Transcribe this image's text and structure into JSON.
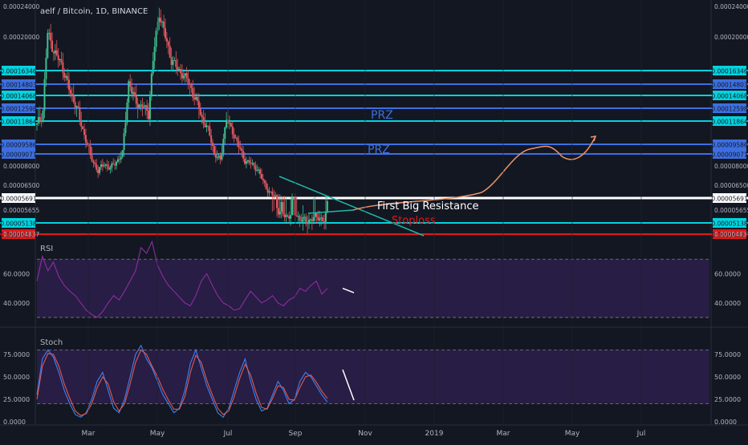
{
  "colors": {
    "background": "#131722",
    "up_candle": "#3fbf8f",
    "down_candle": "#e4585f",
    "cyan_level": "#00d4e0",
    "blue_level": "#3d6fe0",
    "white_level": "#ffffff",
    "red_level": "#e01919",
    "rsi_line": "#8e2ca3",
    "stoch_k": "#3b82f6",
    "stoch_d": "#e05a4f",
    "projection": "#e8936b",
    "trendline": "#1fb8a8",
    "band_fill": "#3a2260",
    "price_label_text": "#b2b5be"
  },
  "header": {
    "title": "aelf / Bitcoin, 1D, BINANCE"
  },
  "chart_data": [
    {
      "type": "candlestick",
      "title": "aelf / Bitcoin, 1D, BINANCE",
      "ylim": [
        4e-05,
        0.00024
      ],
      "y_ticks": [
        "0.00024000",
        "0.00020000",
        "0.00008000",
        "0.00006500",
        "0.00005655",
        "0.00004837"
      ],
      "x_ticks": [
        "Mar",
        "May",
        "Jul",
        "Sep",
        "Nov",
        "2019",
        "Mar",
        "May",
        "Jul"
      ],
      "price_series": [
        [
          0,
          0.000115
        ],
        [
          4,
          0.000125
        ],
        [
          7,
          0.000205
        ],
        [
          11,
          0.000185
        ],
        [
          16,
          0.00017
        ],
        [
          21,
          0.000145
        ],
        [
          26,
          0.000128
        ],
        [
          31,
          0.000105
        ],
        [
          35,
          8.8e-05
        ],
        [
          40,
          7.6e-05
        ],
        [
          44,
          8.2e-05
        ],
        [
          48,
          7.8e-05
        ],
        [
          52,
          8.4e-05
        ],
        [
          56,
          9e-05
        ],
        [
          60,
          0.00015
        ],
        [
          63,
          0.00014
        ],
        [
          66,
          0.00013
        ],
        [
          69,
          0.000128
        ],
        [
          73,
          0.000124
        ],
        [
          77,
          0.00019
        ],
        [
          80,
          0.000232
        ],
        [
          84,
          0.0002
        ],
        [
          88,
          0.000175
        ],
        [
          92,
          0.000165
        ],
        [
          96,
          0.000158
        ],
        [
          100,
          0.000148
        ],
        [
          104,
          0.000135
        ],
        [
          108,
          0.00012
        ],
        [
          112,
          0.00011
        ],
        [
          116,
          9e-05
        ],
        [
          120,
          8.5e-05
        ],
        [
          124,
          0.00012
        ],
        [
          128,
          0.000108
        ],
        [
          132,
          9.5e-05
        ],
        [
          136,
          8.5e-05
        ],
        [
          140,
          8.2e-05
        ],
        [
          144,
          7.8e-05
        ],
        [
          148,
          6.8e-05
        ],
        [
          152,
          6e-05
        ],
        [
          156,
          5.8e-05
        ],
        [
          160,
          5.5e-05
        ],
        [
          164,
          5.4e-05
        ],
        [
          168,
          5.6e-05
        ],
        [
          172,
          5.3e-05
        ],
        [
          176,
          5.2e-05
        ],
        [
          180,
          5.3e-05
        ],
        [
          184,
          5.4e-05
        ],
        [
          188,
          5.2e-05
        ],
        [
          190,
          5.6e-05
        ]
      ],
      "horizontal_levels": [
        {
          "value": "0.00016346",
          "style": "cyan"
        },
        {
          "value": "0.00014803",
          "style": "blue"
        },
        {
          "value": "0.00014068",
          "style": "cyan"
        },
        {
          "value": "0.00012598",
          "style": "blue"
        },
        {
          "value": "0.00011864",
          "style": "cyan"
        },
        {
          "value": "0.00009586",
          "style": "blue"
        },
        {
          "value": "0.00009071",
          "style": "blue"
        },
        {
          "value": "0.00005691",
          "style": "white"
        },
        {
          "value": "0.00005138",
          "style": "cyan"
        },
        {
          "value": "0.00004837",
          "style": "red"
        }
      ],
      "annotations": [
        "PRZ",
        "PRZ",
        "First Big Resistance",
        "Stoploss"
      ]
    },
    {
      "type": "line",
      "title": "RSI",
      "ylim": [
        25,
        85
      ],
      "y_ticks": [
        "60.0000",
        "40.0000"
      ],
      "band": [
        30,
        70
      ],
      "values": [
        55,
        72,
        62,
        68,
        58,
        52,
        48,
        45,
        40,
        35,
        32,
        30,
        34,
        40,
        45,
        42,
        48,
        55,
        62,
        78,
        74,
        82,
        66,
        58,
        52,
        48,
        44,
        40,
        38,
        45,
        55,
        60,
        52,
        45,
        40,
        38,
        35,
        36,
        42,
        48,
        44,
        40,
        42,
        45,
        40,
        38,
        42,
        44,
        50,
        48,
        52,
        55,
        46,
        50
      ]
    },
    {
      "type": "line",
      "title": "Stoch",
      "ylim": [
        0,
        100
      ],
      "y_ticks": [
        "75.0000",
        "50.0000",
        "25.0000",
        "0.0000"
      ],
      "band": [
        20,
        80
      ],
      "series": [
        {
          "values": [
            30,
            70,
            80,
            72,
            55,
            35,
            20,
            8,
            5,
            10,
            25,
            45,
            55,
            35,
            15,
            10,
            25,
            50,
            75,
            85,
            70,
            60,
            45,
            30,
            20,
            10,
            15,
            35,
            65,
            80,
            60,
            40,
            25,
            10,
            5,
            15,
            35,
            55,
            70,
            45,
            25,
            12,
            15,
            30,
            45,
            35,
            20,
            25,
            45,
            55,
            50,
            40,
            30,
            22
          ]
        },
        {
          "values": [
            25,
            62,
            76,
            75,
            62,
            42,
            26,
            12,
            7,
            9,
            20,
            38,
            50,
            42,
            22,
            12,
            20,
            42,
            66,
            80,
            75,
            62,
            50,
            36,
            24,
            14,
            14,
            28,
            55,
            74,
            66,
            46,
            30,
            15,
            8,
            12,
            28,
            48,
            64,
            52,
            32,
            16,
            14,
            26,
            40,
            38,
            25,
            24,
            38,
            50,
            52,
            44,
            34,
            26
          ]
        }
      ]
    }
  ]
}
